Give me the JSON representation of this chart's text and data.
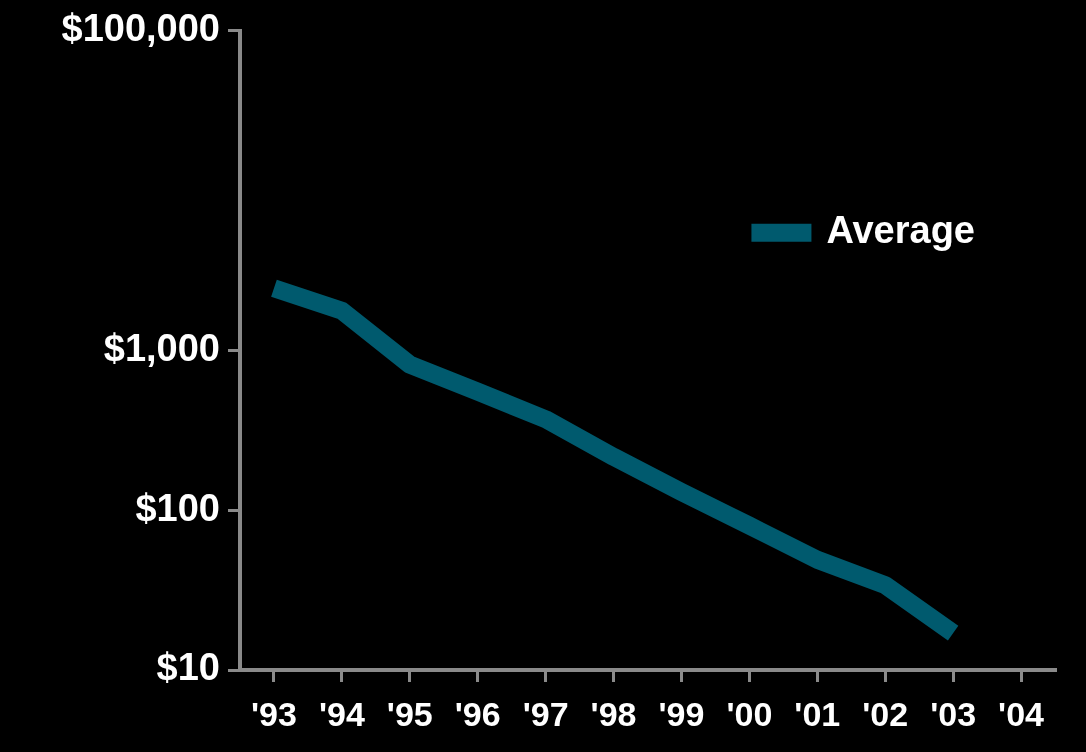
{
  "chart_data": {
    "type": "line",
    "categories": [
      "'93",
      "'94",
      "'95",
      "'96",
      "'97",
      "'98",
      "'99",
      "'00",
      "'01",
      "'02",
      "'03",
      "'04"
    ],
    "series": [
      {
        "name": "Average",
        "color": "#005a6e",
        "values": [
          2450,
          1770,
          815,
          552,
          371,
          216,
          130,
          80,
          49,
          34,
          17,
          null
        ]
      }
    ],
    "log": "y",
    "ylim": [
      10,
      100000
    ],
    "yticks": [
      {
        "value": 10,
        "label": "$10"
      },
      {
        "value": 100,
        "label": "$100"
      },
      {
        "value": 1000,
        "label": "$1,000"
      },
      {
        "value": 100000,
        "label": "$100,000"
      }
    ],
    "grid": false,
    "legend": "top right",
    "marker": "none",
    "line_style": "solid"
  }
}
